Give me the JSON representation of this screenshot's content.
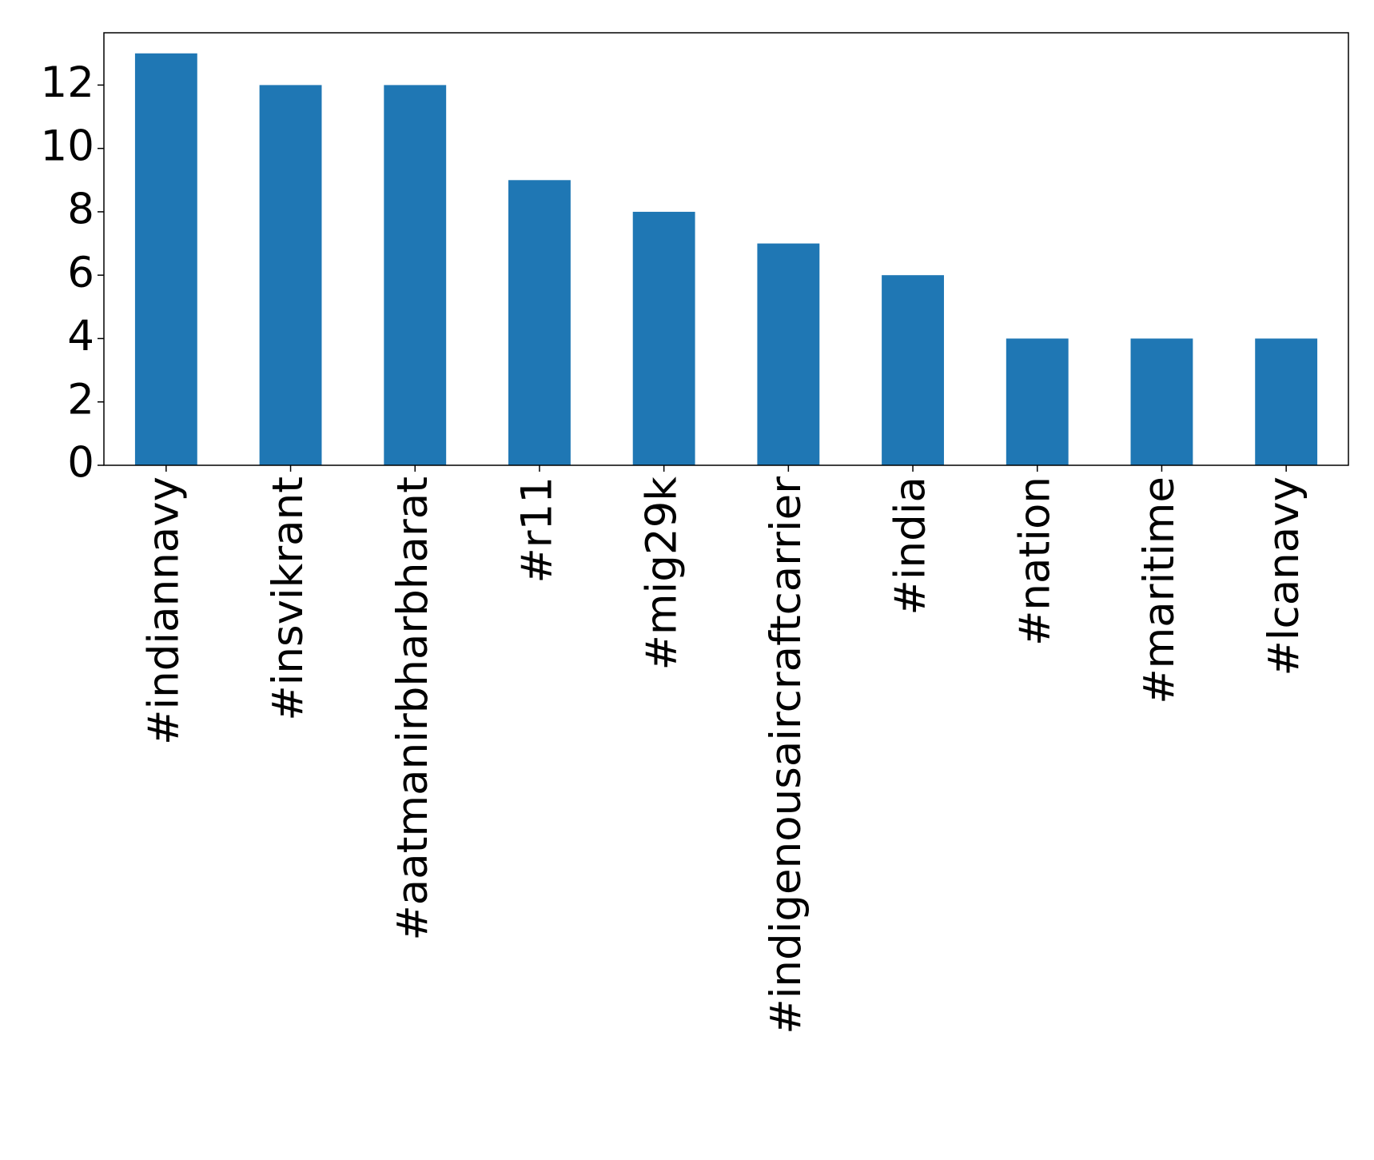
{
  "chart_data": {
    "type": "bar",
    "categories": [
      "#indiannavy",
      "#insvikrant",
      "#aatmanirbharbharat",
      "#r11",
      "#mig29k",
      "#indigenousaircraftcarrier",
      "#india",
      "#nation",
      "#maritime",
      "#lcanavy"
    ],
    "values": [
      13,
      12,
      12,
      9,
      8,
      7,
      6,
      4,
      4,
      4
    ],
    "color": "#1f77b4",
    "ylim": [
      0,
      13.65
    ],
    "yticks": [
      0,
      2,
      4,
      6,
      8,
      10,
      12
    ],
    "grid": false
  }
}
